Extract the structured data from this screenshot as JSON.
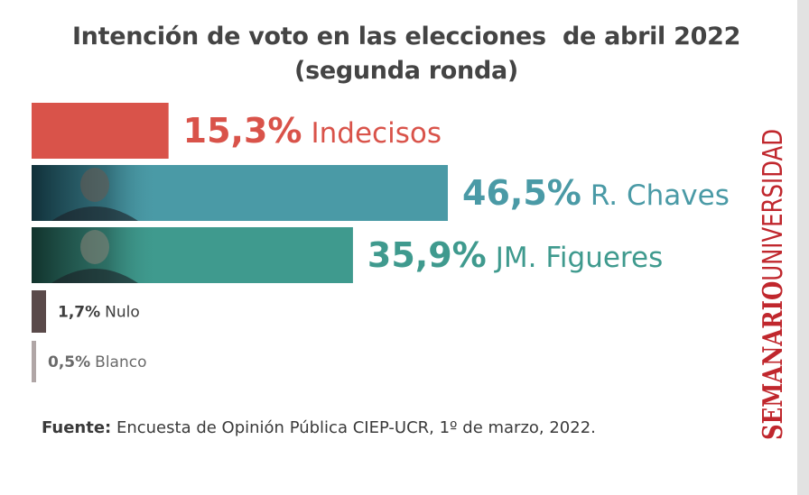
{
  "title": {
    "line1": "Intención de voto en las elecciones  de abril 2022",
    "line2": "(segunda ronda)"
  },
  "source": {
    "label": "Fuente:",
    "text": " Encuesta de Opinión Pública CIEP-UCR, 1º de marzo, 2022."
  },
  "brand": {
    "bold": "SEMANARIO",
    "light": "UNIVERSIDAD",
    "color": "#c0272d"
  },
  "chart_data": {
    "type": "bar",
    "orientation": "horizontal",
    "categories": [
      "Indecisos",
      "R. Chaves",
      "JM. Figueres",
      "Nulo",
      "Blanco"
    ],
    "values": [
      15.3,
      46.5,
      35.9,
      1.7,
      0.5
    ],
    "value_labels": [
      "15,3%",
      "46,5%",
      "35,9%",
      "1,7%",
      "0,5%"
    ],
    "colors": [
      "#d9534a",
      "#4a9aa6",
      "#3f9a8e",
      "#5a4a4a",
      "#b0a6a6"
    ],
    "label_colors": [
      "#d9534a",
      "#4a9aa6",
      "#3f9a8e",
      "#3e3e3e",
      "#6a6a6a"
    ],
    "title": "Intención de voto en las elecciones  de abril 2022 (segunda ronda)",
    "xlabel": "",
    "ylabel": "",
    "unit": "%",
    "grid": false,
    "legend": "none"
  }
}
